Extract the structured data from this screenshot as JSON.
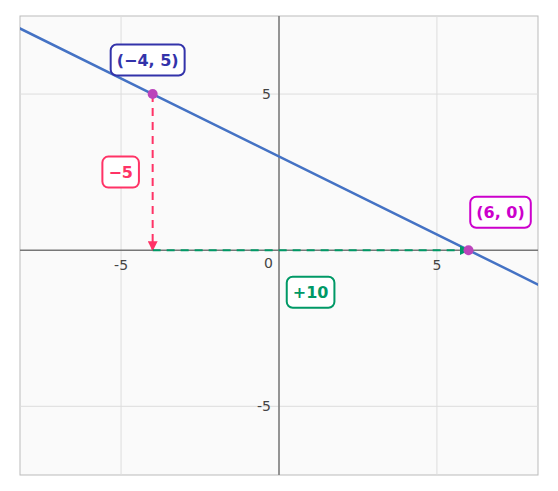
{
  "chart_data": {
    "type": "line",
    "x": [
      -4,
      6
    ],
    "series": [
      {
        "type": "line",
        "color": "#4472C4",
        "values": [
          5,
          0
        ]
      },
      {
        "type": "scatter",
        "color": "#BB44BB",
        "marker": "circle",
        "values": [
          5,
          0
        ]
      }
    ],
    "annotations": [
      {
        "text": "(−4, 5)",
        "color": "#3333AA"
      },
      {
        "text": "(6, 0)",
        "color": "#CC00CC"
      },
      {
        "text": "−5",
        "color": "#FF3366"
      },
      {
        "text": "+10",
        "color": "#009966"
      }
    ],
    "xlim": [
      -8.2,
      8.2
    ],
    "ylim": [
      -7.2,
      7.5
    ],
    "xticks": [
      -5,
      0,
      5
    ],
    "yticks": [
      -5,
      5
    ],
    "grid": true
  }
}
